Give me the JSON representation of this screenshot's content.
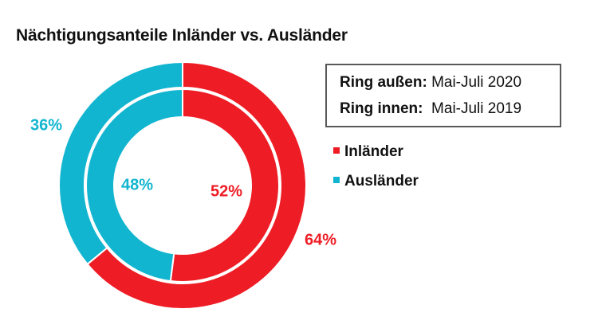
{
  "title": "Nächtigungsanteile Inländer vs. Ausländer",
  "infobox": {
    "outer_label": "Ring außen:",
    "outer_value": "Mai-Juli 2020",
    "inner_label": "Ring innen:",
    "inner_value": "Mai-Juli 2019"
  },
  "colors": {
    "inlaender": "#ee1c25",
    "auslaender": "#12b5d0"
  },
  "chart_data": {
    "type": "pie",
    "subtype": "doughnut",
    "title": "Nächtigungsanteile Inländer vs. Ausländer",
    "categories": [
      "Inländer",
      "Ausländer"
    ],
    "series": [
      {
        "name": "Ring außen: Mai-Juli 2020",
        "values": [
          64,
          36
        ],
        "labels": [
          "64%",
          "36%"
        ]
      },
      {
        "name": "Ring innen: Mai-Juli 2019",
        "values": [
          52,
          48
        ],
        "labels": [
          "52%",
          "48%"
        ]
      }
    ],
    "legend": [
      "Inländer",
      "Ausländer"
    ],
    "legend_position": "right"
  }
}
